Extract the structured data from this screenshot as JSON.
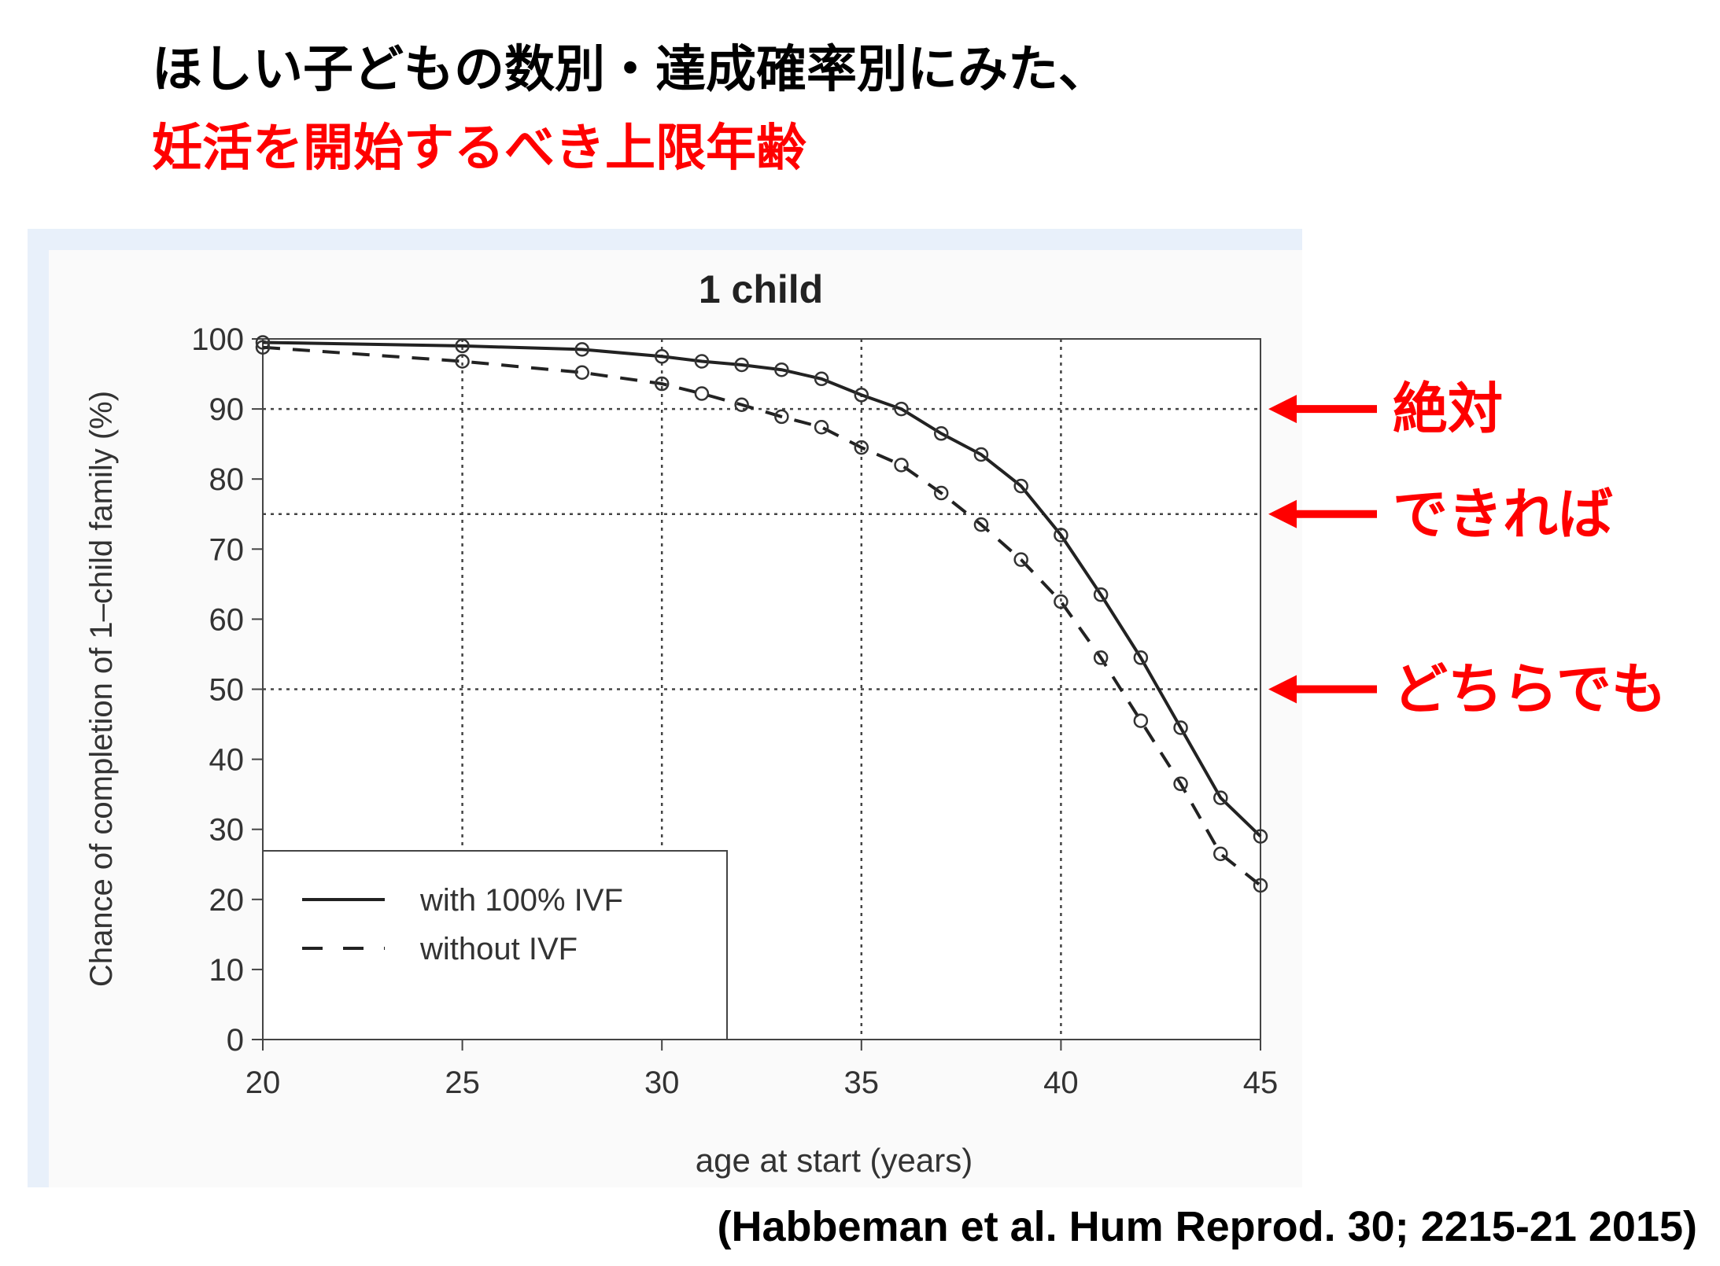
{
  "header": {
    "line1": "ほしい子どもの数別・達成確率別にみた、",
    "line2": "妊活を開始するべき上限年齢"
  },
  "chart_data": {
    "type": "line",
    "title": "1 child",
    "xlabel": "age at start (years)",
    "ylabel": "Chance of completion of 1–child family (%)",
    "x": [
      20,
      25,
      28,
      30,
      31,
      32,
      33,
      34,
      35,
      36,
      37,
      38,
      39,
      40,
      41,
      42,
      43,
      44,
      45
    ],
    "series": [
      {
        "name": "with 100% IVF",
        "color": "#222222",
        "linestyle": "solid",
        "values": [
          99.5,
          99,
          98.5,
          97.5,
          96.8,
          96.3,
          95.6,
          94.3,
          92,
          90,
          86.5,
          83.5,
          79,
          72,
          63.5,
          54.5,
          44.5,
          34.5,
          29
        ]
      },
      {
        "name": "without IVF",
        "color": "#222222",
        "linestyle": "dashed",
        "values": [
          98.8,
          96.8,
          95.2,
          93.6,
          92.2,
          90.6,
          88.9,
          87.4,
          84.5,
          82,
          78,
          73.5,
          68.5,
          62.5,
          54.5,
          45.5,
          36.5,
          26.5,
          22
        ]
      }
    ],
    "xlim": [
      20,
      45
    ],
    "ylim": [
      0,
      100
    ],
    "xticks": [
      20,
      25,
      30,
      35,
      40,
      45
    ],
    "yticks": [
      0,
      10,
      20,
      30,
      40,
      50,
      60,
      70,
      80,
      90,
      100
    ],
    "xgrid": [
      25,
      30,
      35,
      40
    ],
    "legend": "lower left",
    "annotations": [
      {
        "text": "絶対",
        "y": 90,
        "color": "#ff0000"
      },
      {
        "text": "できれば",
        "y": 75,
        "color": "#ff0000"
      },
      {
        "text": "どちらでも",
        "y": 50,
        "color": "#ff0000"
      }
    ]
  },
  "citation": "(Habbeman et al. Hum Reprod. 30; 2215-21 2015)"
}
